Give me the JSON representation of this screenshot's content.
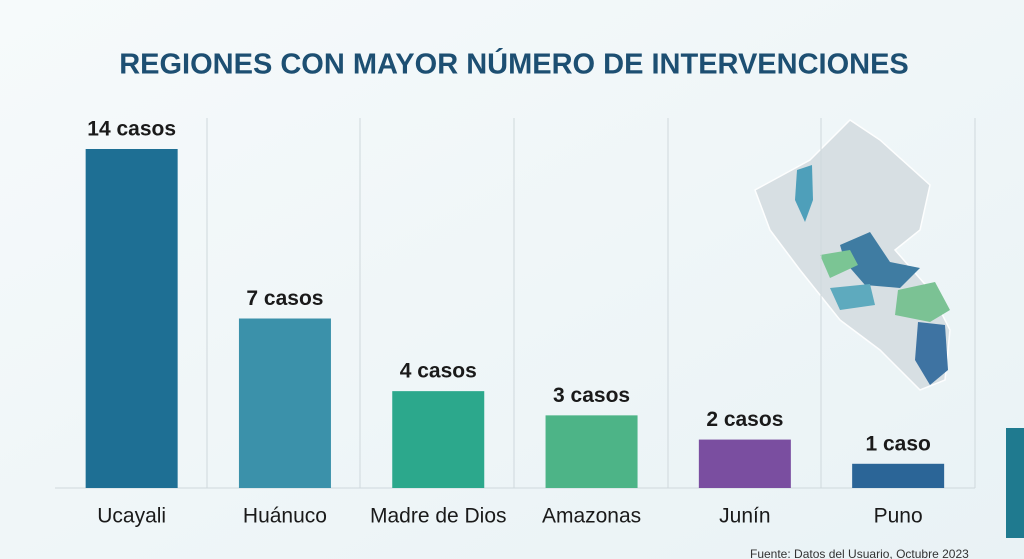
{
  "chart_data": {
    "type": "bar",
    "title": "REGIONES CON MAYOR NÚMERO DE INTERVENCIONES",
    "categories": [
      "Ucayali",
      "Huánuco",
      "Madre de Dios",
      "Amazonas",
      "Junín",
      "Puno"
    ],
    "values": [
      14,
      7,
      4,
      3,
      2,
      1
    ],
    "value_labels": [
      "14 casos",
      "7 casos",
      "4 casos",
      "3 casos",
      "2 casos",
      "1 caso"
    ],
    "colors": [
      "#1e6f94",
      "#3b91aa",
      "#2ca88c",
      "#4db487",
      "#7a4ea0",
      "#2b6597"
    ],
    "source": "Fuente: Datos del Usuario, Octubre 2023"
  }
}
